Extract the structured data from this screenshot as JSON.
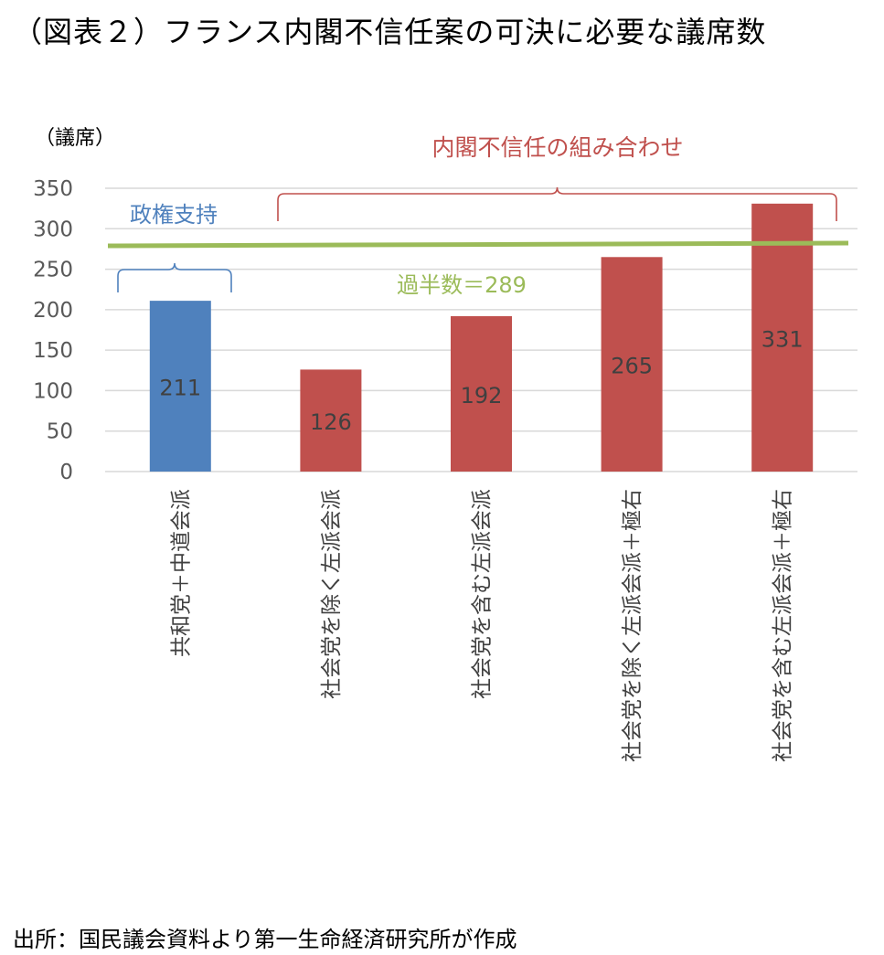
{
  "title": "（図表２）フランス内閣不信任案の可決に必要な議席数",
  "source": "出所：国民議会資料より第一生命経済研究所が作成",
  "colors": {
    "government": "#4f81bd",
    "opposition": "#c0504d",
    "majority": "#9bbb59",
    "grid": "#d9d9d9"
  },
  "chart_data": {
    "type": "bar",
    "ylabel": "（議席）",
    "ylim": [
      0,
      350
    ],
    "yticks": [
      0,
      50,
      100,
      150,
      200,
      250,
      300,
      350
    ],
    "grid": true,
    "categories": [
      "共和党＋中道会派",
      "社会党を除く左派会派",
      "社会党を含む左派会派",
      "社会党を除く左派会派＋極右",
      "社会党を含む左派会派＋極右"
    ],
    "values": [
      211,
      126,
      192,
      265,
      331
    ],
    "data_labels": [
      "211",
      "126",
      "192",
      "265",
      "331"
    ],
    "bar_groups": [
      "government",
      "opposition",
      "opposition",
      "opposition",
      "opposition"
    ],
    "majority_line": {
      "value": 289,
      "label": "過半数＝289"
    },
    "annotations": {
      "government_bracket": "政権支持",
      "opposition_bracket": "内閣不信任の組み合わせ"
    }
  }
}
